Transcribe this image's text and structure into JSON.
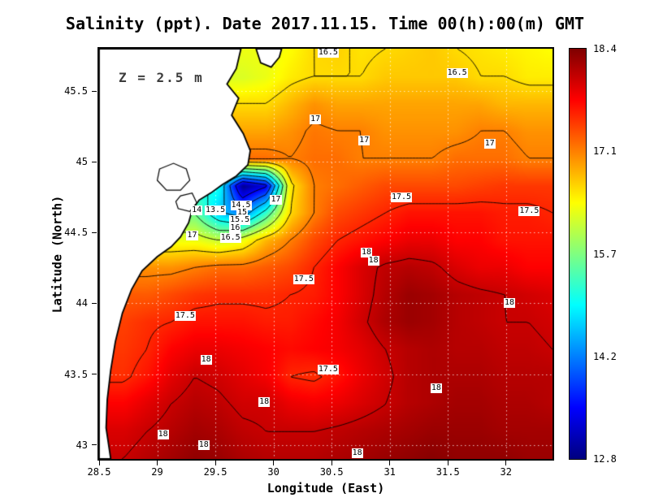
{
  "colors": {
    "background": "#ffffff",
    "land": "#ffffff",
    "coast": "#000000",
    "contour": "#000000",
    "grid_dots": "#ffffff",
    "frame": "#000000",
    "annotation_text": "#3c3c3c",
    "label_bg": "#ffffff",
    "text": "#000000"
  },
  "chart_data": {
    "type": "heatmap",
    "title": "Salinity (ppt). Date 2017.11.15. Time 00(h):00(m) GMT",
    "annotation": "Z = 2.5 m",
    "xlabel": "Longitude (East)",
    "ylabel": "Latitude (North)",
    "x_range": [
      28.5,
      32.4
    ],
    "y_range": [
      42.9,
      45.8
    ],
    "x_ticks": [
      "28.5",
      "29",
      "29.5",
      "30",
      "30.5",
      "31",
      "31.5",
      "32"
    ],
    "x_tick_values": [
      28.5,
      29,
      29.5,
      30,
      30.5,
      31,
      31.5,
      32
    ],
    "y_ticks": [
      "43",
      "43.5",
      "44",
      "44.5",
      "45",
      "45.5"
    ],
    "y_tick_values": [
      43,
      43.5,
      44,
      44.5,
      45,
      45.5
    ],
    "grid_lines": true,
    "colorbar": {
      "min": 12.8,
      "max": 18.4,
      "tick_labels": [
        "18.4",
        "17.1",
        "15.7",
        "14.2",
        "12.8"
      ],
      "colormap": "jet",
      "gradient_stops": [
        "#7f0000 0%",
        "#ff0000 12.5%",
        "#ffff00 37.5%",
        "#00ffff 62.5%",
        "#0000ff 87.5%",
        "#00007f 100%"
      ]
    },
    "contour_levels": [
      13.5,
      14,
      14.5,
      15,
      15.5,
      16,
      16.5,
      17,
      17.5,
      18
    ],
    "contour_labels": [
      {
        "v": "16.5",
        "lon": 30.47,
        "lat": 45.77
      },
      {
        "v": "16.5",
        "lon": 31.58,
        "lat": 45.63
      },
      {
        "v": "17",
        "lon": 30.36,
        "lat": 45.3
      },
      {
        "v": "17",
        "lon": 30.78,
        "lat": 45.15
      },
      {
        "v": "17",
        "lon": 31.86,
        "lat": 45.13
      },
      {
        "v": "17",
        "lon": 30.02,
        "lat": 44.73
      },
      {
        "v": "17.5",
        "lon": 31.1,
        "lat": 44.75
      },
      {
        "v": "17.5",
        "lon": 32.2,
        "lat": 44.65
      },
      {
        "v": "14",
        "lon": 29.34,
        "lat": 44.66
      },
      {
        "v": "13.5",
        "lon": 29.5,
        "lat": 44.66
      },
      {
        "v": "14.5",
        "lon": 29.72,
        "lat": 44.69
      },
      {
        "v": "15",
        "lon": 29.73,
        "lat": 44.64
      },
      {
        "v": "15.5",
        "lon": 29.71,
        "lat": 44.59
      },
      {
        "v": "16",
        "lon": 29.67,
        "lat": 44.53
      },
      {
        "v": "16.5",
        "lon": 29.63,
        "lat": 44.46
      },
      {
        "v": "17",
        "lon": 29.3,
        "lat": 44.48
      },
      {
        "v": "18",
        "lon": 30.8,
        "lat": 44.36
      },
      {
        "v": "18",
        "lon": 30.86,
        "lat": 44.3
      },
      {
        "v": "17.5",
        "lon": 30.26,
        "lat": 44.17
      },
      {
        "v": "18",
        "lon": 32.03,
        "lat": 44.0
      },
      {
        "v": "17.5",
        "lon": 29.24,
        "lat": 43.91
      },
      {
        "v": "18",
        "lon": 29.42,
        "lat": 43.6
      },
      {
        "v": "17.5",
        "lon": 30.47,
        "lat": 43.53
      },
      {
        "v": "18",
        "lon": 31.4,
        "lat": 43.4
      },
      {
        "v": "18",
        "lon": 29.92,
        "lat": 43.3
      },
      {
        "v": "18",
        "lon": 29.05,
        "lat": 43.07
      },
      {
        "v": "18",
        "lon": 29.4,
        "lat": 43.0
      },
      {
        "v": "18",
        "lon": 30.72,
        "lat": 42.94
      }
    ],
    "grid": {
      "lons": [
        28.5,
        28.71,
        28.91,
        29.12,
        29.32,
        29.53,
        29.73,
        29.94,
        30.14,
        30.35,
        30.55,
        30.76,
        30.96,
        31.17,
        31.37,
        31.58,
        31.78,
        31.99,
        32.19,
        32.4
      ],
      "lats": [
        45.8,
        45.61,
        45.41,
        45.22,
        45.03,
        44.83,
        44.64,
        44.45,
        44.25,
        44.06,
        43.87,
        43.67,
        43.48,
        43.29,
        43.09,
        42.9
      ],
      "values": [
        [
          null,
          null,
          null,
          null,
          null,
          null,
          null,
          16.2,
          16.3,
          16.5,
          16.55,
          16.45,
          16.5,
          16.55,
          16.6,
          16.5,
          16.45,
          16.4,
          16.35,
          16.3
        ],
        [
          null,
          null,
          null,
          null,
          null,
          null,
          16.1,
          16.2,
          16.4,
          16.5,
          16.5,
          16.5,
          16.6,
          16.6,
          16.6,
          16.6,
          16.5,
          16.5,
          16.4,
          16.4
        ],
        [
          null,
          null,
          null,
          null,
          null,
          null,
          null,
          16.5,
          16.7,
          16.9,
          16.8,
          16.8,
          16.8,
          16.8,
          16.8,
          16.8,
          16.8,
          16.7,
          16.7,
          16.7
        ],
        [
          null,
          null,
          null,
          null,
          null,
          null,
          null,
          16.8,
          16.9,
          17.05,
          17.0,
          17.0,
          16.9,
          16.9,
          16.9,
          16.9,
          17.0,
          17.0,
          16.9,
          16.9
        ],
        [
          null,
          null,
          null,
          null,
          null,
          null,
          null,
          17.1,
          17.0,
          17.1,
          17.1,
          17.0,
          17.0,
          17.0,
          17.0,
          17.1,
          17.1,
          17.1,
          17.0,
          17.0
        ],
        [
          null,
          null,
          null,
          null,
          null,
          15.0,
          12.9,
          13.4,
          16.4,
          17.0,
          17.1,
          17.2,
          17.3,
          17.3,
          17.3,
          17.3,
          17.35,
          17.4,
          17.4,
          17.4
        ],
        [
          null,
          null,
          null,
          null,
          15.5,
          14.6,
          14.2,
          15.2,
          16.5,
          17.0,
          17.3,
          17.4,
          17.5,
          17.6,
          17.6,
          17.6,
          17.6,
          17.55,
          17.55,
          17.5
        ],
        [
          null,
          null,
          null,
          null,
          16.2,
          16.0,
          16.2,
          16.7,
          17.0,
          17.3,
          17.5,
          17.6,
          17.7,
          17.8,
          17.8,
          17.7,
          17.7,
          17.6,
          17.6,
          17.6
        ],
        [
          null,
          null,
          16.9,
          16.9,
          17.0,
          17.1,
          17.1,
          17.2,
          17.3,
          17.5,
          17.7,
          17.9,
          18.05,
          18.1,
          18.05,
          17.9,
          17.8,
          17.8,
          17.7,
          17.7
        ],
        [
          null,
          null,
          17.2,
          17.3,
          17.4,
          17.45,
          17.45,
          17.45,
          17.5,
          17.55,
          17.7,
          17.9,
          18.1,
          18.25,
          18.2,
          18.1,
          18.05,
          18.0,
          17.95,
          17.9
        ],
        [
          null,
          17.35,
          17.45,
          17.5,
          17.6,
          17.6,
          17.6,
          17.55,
          17.55,
          17.65,
          17.75,
          17.95,
          18.15,
          18.25,
          18.2,
          18.1,
          18.05,
          18.0,
          18.0,
          17.95
        ],
        [
          null,
          17.4,
          17.5,
          17.7,
          17.8,
          17.8,
          17.75,
          17.7,
          17.65,
          17.7,
          17.75,
          17.85,
          18.0,
          18.1,
          18.15,
          18.1,
          18.1,
          18.05,
          18.05,
          18.0
        ],
        [
          null,
          17.45,
          17.6,
          17.85,
          18.0,
          17.95,
          17.85,
          17.75,
          17.5,
          17.45,
          17.6,
          17.8,
          17.95,
          18.1,
          18.15,
          18.15,
          18.15,
          18.1,
          18.1,
          18.1
        ],
        [
          null,
          17.7,
          17.85,
          18.0,
          18.1,
          18.05,
          17.95,
          17.95,
          17.8,
          17.75,
          17.8,
          17.9,
          18.0,
          18.1,
          18.15,
          18.2,
          18.2,
          18.15,
          18.15,
          18.1
        ],
        [
          null,
          17.9,
          18.0,
          18.1,
          18.2,
          18.15,
          18.05,
          18.0,
          18.0,
          18.0,
          18.05,
          18.1,
          18.15,
          18.2,
          18.25,
          18.25,
          18.25,
          18.2,
          18.2,
          18.2
        ],
        [
          null,
          18.0,
          18.1,
          18.2,
          18.3,
          18.25,
          18.15,
          18.1,
          18.1,
          18.1,
          18.15,
          18.2,
          18.25,
          18.3,
          18.35,
          18.3,
          18.3,
          18.3,
          18.25,
          18.25
        ]
      ]
    },
    "land_polygon": [
      [
        28.5,
        45.8
      ],
      [
        29.72,
        45.8
      ],
      [
        29.68,
        45.66
      ],
      [
        29.6,
        45.55
      ],
      [
        29.7,
        45.45
      ],
      [
        29.64,
        45.33
      ],
      [
        29.74,
        45.2
      ],
      [
        29.8,
        45.08
      ],
      [
        29.78,
        44.98
      ],
      [
        29.68,
        44.9
      ],
      [
        29.56,
        44.84
      ],
      [
        29.46,
        44.78
      ],
      [
        29.36,
        44.73
      ],
      [
        29.3,
        44.66
      ],
      [
        29.27,
        44.57
      ],
      [
        29.2,
        44.47
      ],
      [
        29.12,
        44.4
      ],
      [
        29.0,
        44.33
      ],
      [
        28.87,
        44.23
      ],
      [
        28.78,
        44.1
      ],
      [
        28.7,
        43.93
      ],
      [
        28.64,
        43.73
      ],
      [
        28.6,
        43.53
      ],
      [
        28.57,
        43.32
      ],
      [
        28.56,
        43.12
      ],
      [
        28.6,
        42.9
      ],
      [
        28.5,
        42.9
      ]
    ],
    "estuary_polygon": [
      [
        29.85,
        45.8
      ],
      [
        29.89,
        45.7
      ],
      [
        29.98,
        45.67
      ],
      [
        30.05,
        45.74
      ],
      [
        30.07,
        45.8
      ]
    ],
    "lakes": [
      [
        [
          29.02,
          44.95
        ],
        [
          29.14,
          44.99
        ],
        [
          29.25,
          44.95
        ],
        [
          29.28,
          44.87
        ],
        [
          29.2,
          44.8
        ],
        [
          29.08,
          44.8
        ],
        [
          29.0,
          44.87
        ]
      ],
      [
        [
          29.2,
          44.76
        ],
        [
          29.3,
          44.78
        ],
        [
          29.34,
          44.71
        ],
        [
          29.28,
          44.65
        ],
        [
          29.18,
          44.67
        ],
        [
          29.16,
          44.72
        ]
      ]
    ]
  }
}
